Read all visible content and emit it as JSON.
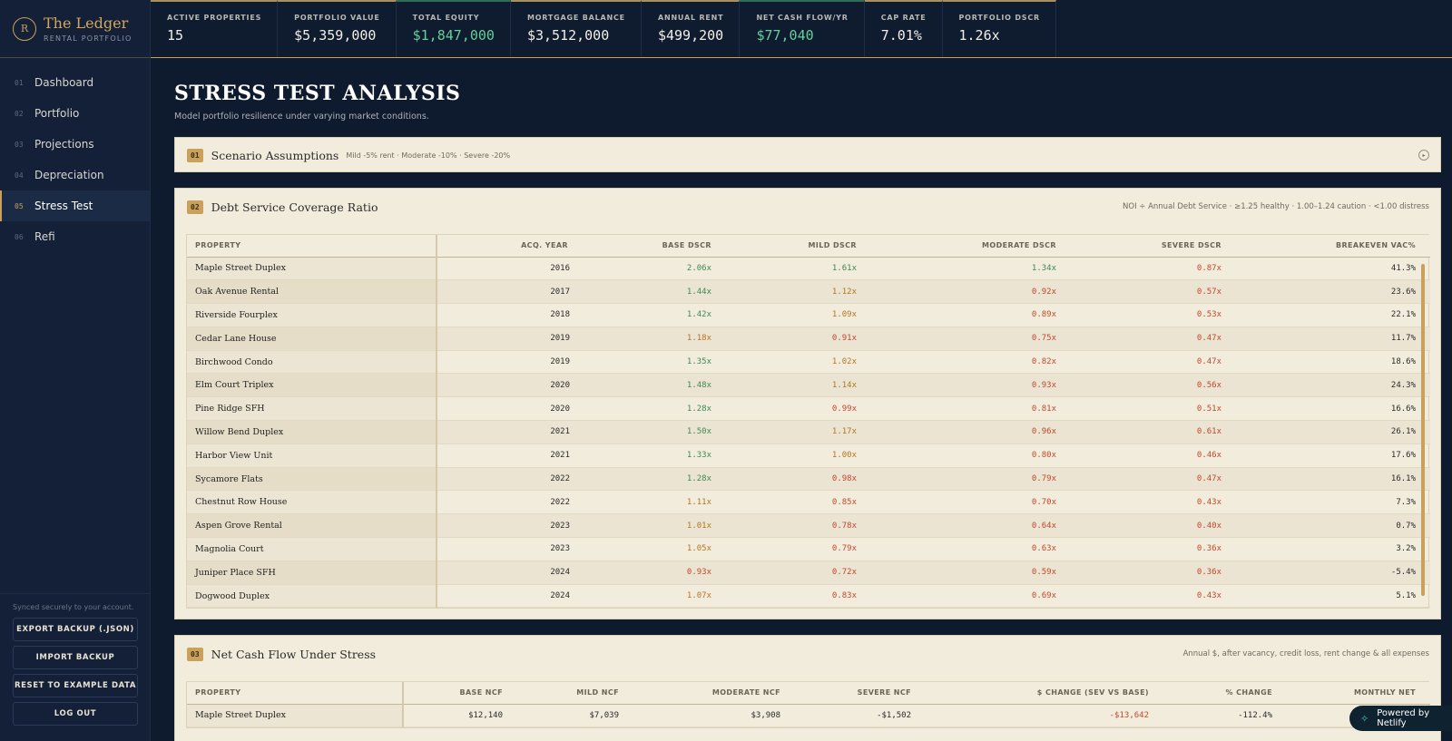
{
  "brand": {
    "logo_letter": "R",
    "title": "The Ledger",
    "subtitle": "RENTAL PORTFOLIO"
  },
  "nav": [
    {
      "num": "01",
      "label": "Dashboard"
    },
    {
      "num": "02",
      "label": "Portfolio"
    },
    {
      "num": "03",
      "label": "Projections"
    },
    {
      "num": "04",
      "label": "Depreciation"
    },
    {
      "num": "05",
      "label": "Stress Test",
      "active": true
    },
    {
      "num": "06",
      "label": "Refi"
    }
  ],
  "sidebar_footer": {
    "sync_text": "Synced securely to your account.",
    "export_label": "EXPORT BACKUP (.JSON)",
    "import_label": "IMPORT BACKUP",
    "reset_label": "RESET TO EXAMPLE DATA",
    "logout_label": "LOG OUT"
  },
  "stats": [
    {
      "label": "ACTIVE PROPERTIES",
      "value": "15"
    },
    {
      "label": "PORTFOLIO VALUE",
      "value": "$5,359,000"
    },
    {
      "label": "TOTAL EQUITY",
      "value": "$1,847,000",
      "positive": true
    },
    {
      "label": "MORTGAGE BALANCE",
      "value": "$3,512,000"
    },
    {
      "label": "ANNUAL RENT",
      "value": "$499,200"
    },
    {
      "label": "NET CASH FLOW/YR",
      "value": "$77,040",
      "positive": true
    },
    {
      "label": "CAP RATE",
      "value": "7.01%"
    },
    {
      "label": "PORTFOLIO DSCR",
      "value": "1.26x"
    }
  ],
  "page": {
    "title": "STRESS TEST ANALYSIS",
    "subtitle": "Model portfolio resilience under varying market conditions."
  },
  "section1": {
    "badge": "01",
    "title": "Scenario Assumptions",
    "hint": "Mild -5% rent · Moderate -10% · Severe -20%"
  },
  "section2": {
    "badge": "02",
    "title": "Debt Service Coverage Ratio",
    "note": "NOI ÷ Annual Debt Service · ≥1.25 healthy · 1.00–1.24 caution · <1.00 distress",
    "columns": [
      "PROPERTY",
      "ACQ. YEAR",
      "BASE DSCR",
      "MILD DSCR",
      "MODERATE DSCR",
      "SEVERE DSCR",
      "BREAKEVEN VAC%"
    ],
    "rows": [
      [
        "Maple Street Duplex",
        "2016",
        "2.06x",
        "1.61x",
        "1.34x",
        "0.87x",
        "41.3%"
      ],
      [
        "Oak Avenue Rental",
        "2017",
        "1.44x",
        "1.12x",
        "0.92x",
        "0.57x",
        "23.6%"
      ],
      [
        "Riverside Fourplex",
        "2018",
        "1.42x",
        "1.09x",
        "0.89x",
        "0.53x",
        "22.1%"
      ],
      [
        "Cedar Lane House",
        "2019",
        "1.18x",
        "0.91x",
        "0.75x",
        "0.47x",
        "11.7%"
      ],
      [
        "Birchwood Condo",
        "2019",
        "1.35x",
        "1.02x",
        "0.82x",
        "0.47x",
        "18.6%"
      ],
      [
        "Elm Court Triplex",
        "2020",
        "1.48x",
        "1.14x",
        "0.93x",
        "0.56x",
        "24.3%"
      ],
      [
        "Pine Ridge SFH",
        "2020",
        "1.28x",
        "0.99x",
        "0.81x",
        "0.51x",
        "16.6%"
      ],
      [
        "Willow Bend Duplex",
        "2021",
        "1.50x",
        "1.17x",
        "0.96x",
        "0.61x",
        "26.1%"
      ],
      [
        "Harbor View Unit",
        "2021",
        "1.33x",
        "1.00x",
        "0.80x",
        "0.46x",
        "17.6%"
      ],
      [
        "Sycamore Flats",
        "2022",
        "1.28x",
        "0.98x",
        "0.79x",
        "0.47x",
        "16.1%"
      ],
      [
        "Chestnut Row House",
        "2022",
        "1.11x",
        "0.85x",
        "0.70x",
        "0.43x",
        "7.3%"
      ],
      [
        "Aspen Grove Rental",
        "2023",
        "1.01x",
        "0.78x",
        "0.64x",
        "0.40x",
        "0.7%"
      ],
      [
        "Magnolia Court",
        "2023",
        "1.05x",
        "0.79x",
        "0.63x",
        "0.36x",
        "3.2%"
      ],
      [
        "Juniper Place SFH",
        "2024",
        "0.93x",
        "0.72x",
        "0.59x",
        "0.36x",
        "-5.4%"
      ],
      [
        "Dogwood Duplex",
        "2024",
        "1.07x",
        "0.83x",
        "0.69x",
        "0.43x",
        "5.1%"
      ]
    ]
  },
  "section3": {
    "badge": "03",
    "title": "Net Cash Flow Under Stress",
    "note": "Annual $, after vacancy, credit loss, rent change & all expenses",
    "columns": [
      "PROPERTY",
      "BASE NCF",
      "MILD NCF",
      "MODERATE NCF",
      "SEVERE NCF",
      "$ CHANGE (SEV VS BASE)",
      "% CHANGE",
      "MONTHLY NET"
    ],
    "rows": [
      [
        "Maple Street Duplex",
        "$12,140",
        "$7,039",
        "$3,908",
        "-$1,502",
        "-$13,642",
        "-112.4%",
        ""
      ]
    ]
  },
  "badge_powered": "Powered by Netlify",
  "colors": {
    "accent": "#c9a15a",
    "healthy": "#3c8a55",
    "caution": "#b5761f",
    "distress": "#c2482e",
    "positive": "#63d19a"
  }
}
